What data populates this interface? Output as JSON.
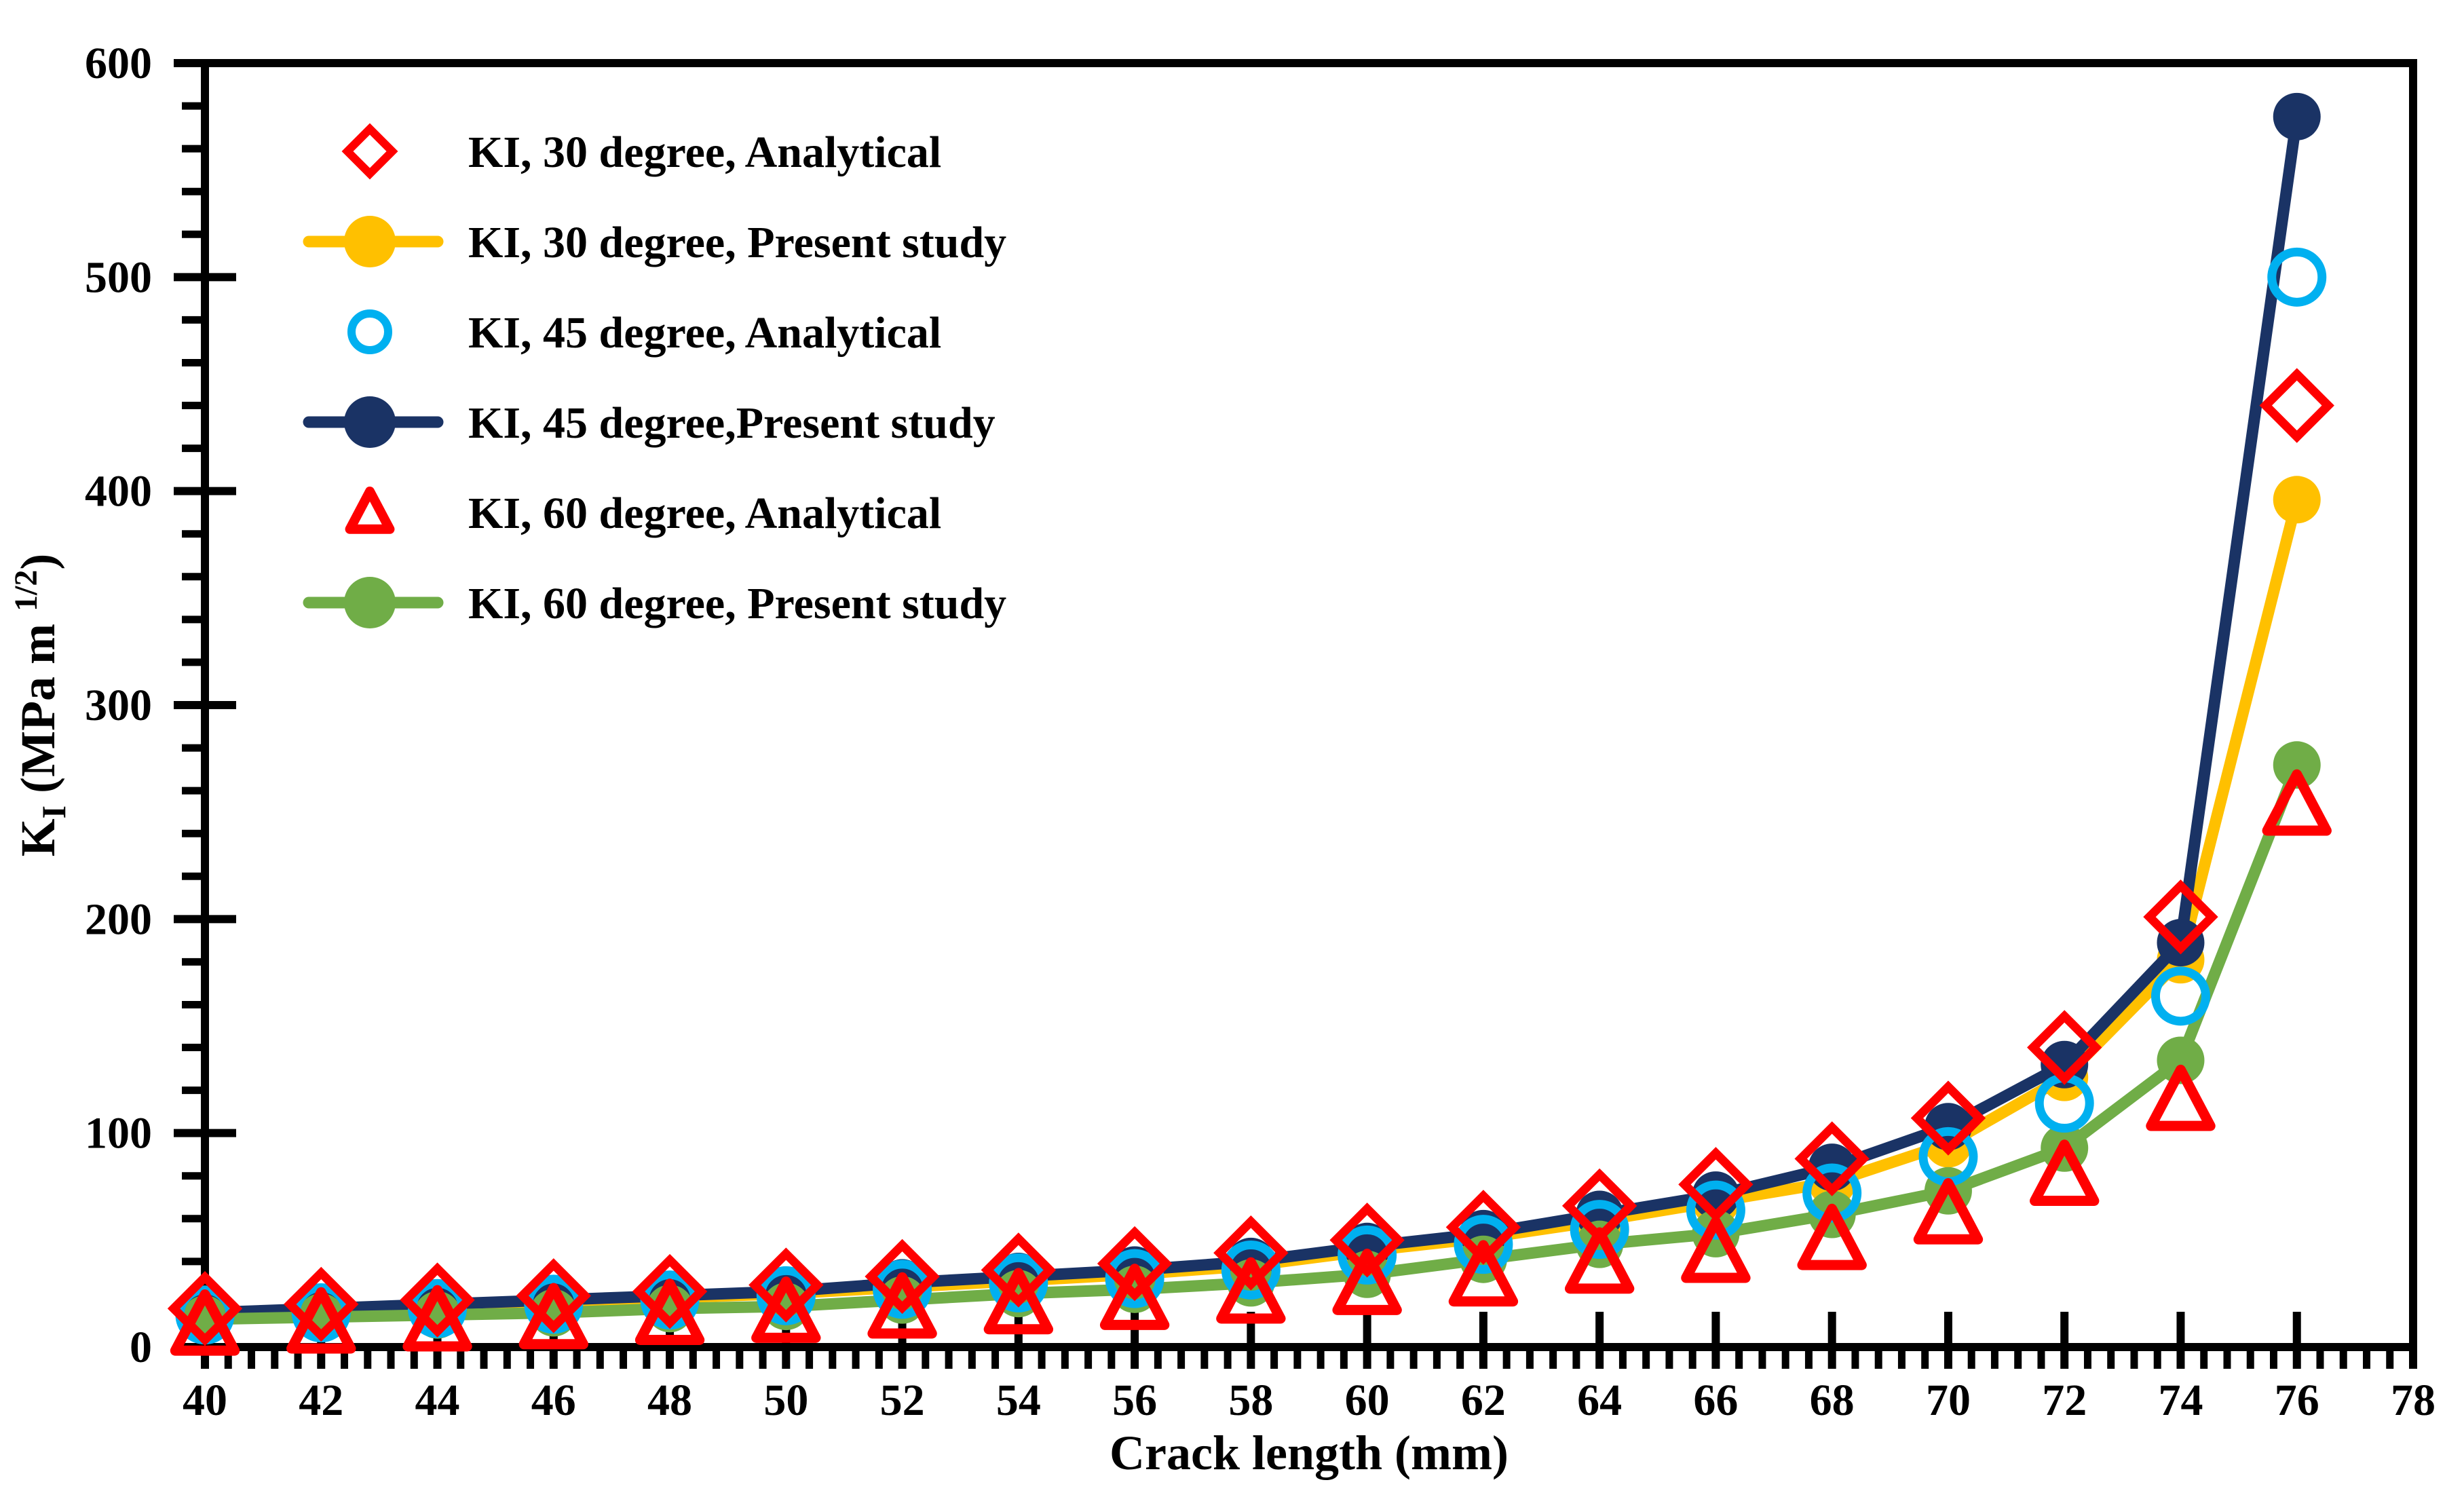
{
  "chart_data": {
    "type": "line",
    "title": "",
    "xlabel": "Crack length (mm)",
    "ylabel": "KI (MPa m 1/2)",
    "ylabel_parts": {
      "base": "K",
      "sub": "I",
      "mid": " (MPa m ",
      "sup": "1/2",
      "close": ")"
    },
    "xlim": [
      40,
      78
    ],
    "ylim": [
      0,
      600
    ],
    "x_major_step": 2,
    "x_minor_step": 0.4,
    "y_major_step": 100,
    "y_minor_step": 20,
    "x_ticks": [
      40,
      42,
      44,
      46,
      48,
      50,
      52,
      54,
      56,
      58,
      60,
      62,
      64,
      66,
      68,
      70,
      72,
      74,
      76,
      78
    ],
    "y_ticks": [
      0,
      100,
      200,
      300,
      400,
      500,
      600
    ],
    "grid": "off",
    "legend_position": "upper-left-inside",
    "x": [
      40,
      42,
      44,
      46,
      48,
      50,
      52,
      54,
      56,
      58,
      60,
      62,
      64,
      66,
      68,
      70,
      72,
      74,
      76
    ],
    "series": [
      {
        "name": "KI, 30 degree, Analytical",
        "color": "#FF0000",
        "marker": "diamond-open",
        "line": false,
        "values": [
          18,
          20,
          22,
          24,
          26,
          29,
          33,
          36,
          39,
          44,
          50,
          56,
          66,
          76,
          88,
          107,
          140,
          201,
          440
        ]
      },
      {
        "name": "KI, 30 degree, Present study",
        "color": "#FFC000",
        "marker": "circle-filled",
        "line": true,
        "values": [
          15,
          17,
          19,
          21,
          23,
          25,
          28,
          31,
          34,
          38,
          45,
          51,
          59,
          68,
          77,
          95,
          126,
          181,
          396
        ]
      },
      {
        "name": "KI, 45 degree, Analytical",
        "color": "#00B0F0",
        "marker": "circle-open",
        "line": false,
        "values": [
          15,
          16,
          18,
          20,
          22,
          24,
          27,
          30,
          32,
          36,
          43,
          48,
          55,
          64,
          72,
          89,
          114,
          164,
          500
        ]
      },
      {
        "name": "KI, 45 degree,Present study",
        "color": "#1A3365",
        "marker": "circle-filled",
        "line": true,
        "values": [
          16,
          18,
          20,
          22,
          24,
          26,
          30,
          33,
          36,
          40,
          47,
          53,
          62,
          71,
          84,
          103,
          132,
          189,
          575
        ]
      },
      {
        "name": "KI, 60 degree, Analytical",
        "color": "#FF0000",
        "marker": "triangle-open",
        "line": false,
        "values": [
          10,
          11,
          12,
          13,
          15,
          16,
          18,
          20,
          22,
          25,
          29,
          33,
          39,
          44,
          50,
          62,
          80,
          115,
          253
        ]
      },
      {
        "name": "KI, 60 degree, Present study",
        "color": "#70AD47",
        "marker": "circle-filled",
        "line": true,
        "values": [
          13,
          14,
          15,
          16,
          18,
          19,
          22,
          25,
          27,
          30,
          34,
          41,
          48,
          53,
          62,
          73,
          93,
          134,
          272
        ]
      }
    ],
    "plot_draw_order": [
      1,
      3,
      5,
      2,
      0,
      4
    ],
    "axis_color": "#000000"
  }
}
